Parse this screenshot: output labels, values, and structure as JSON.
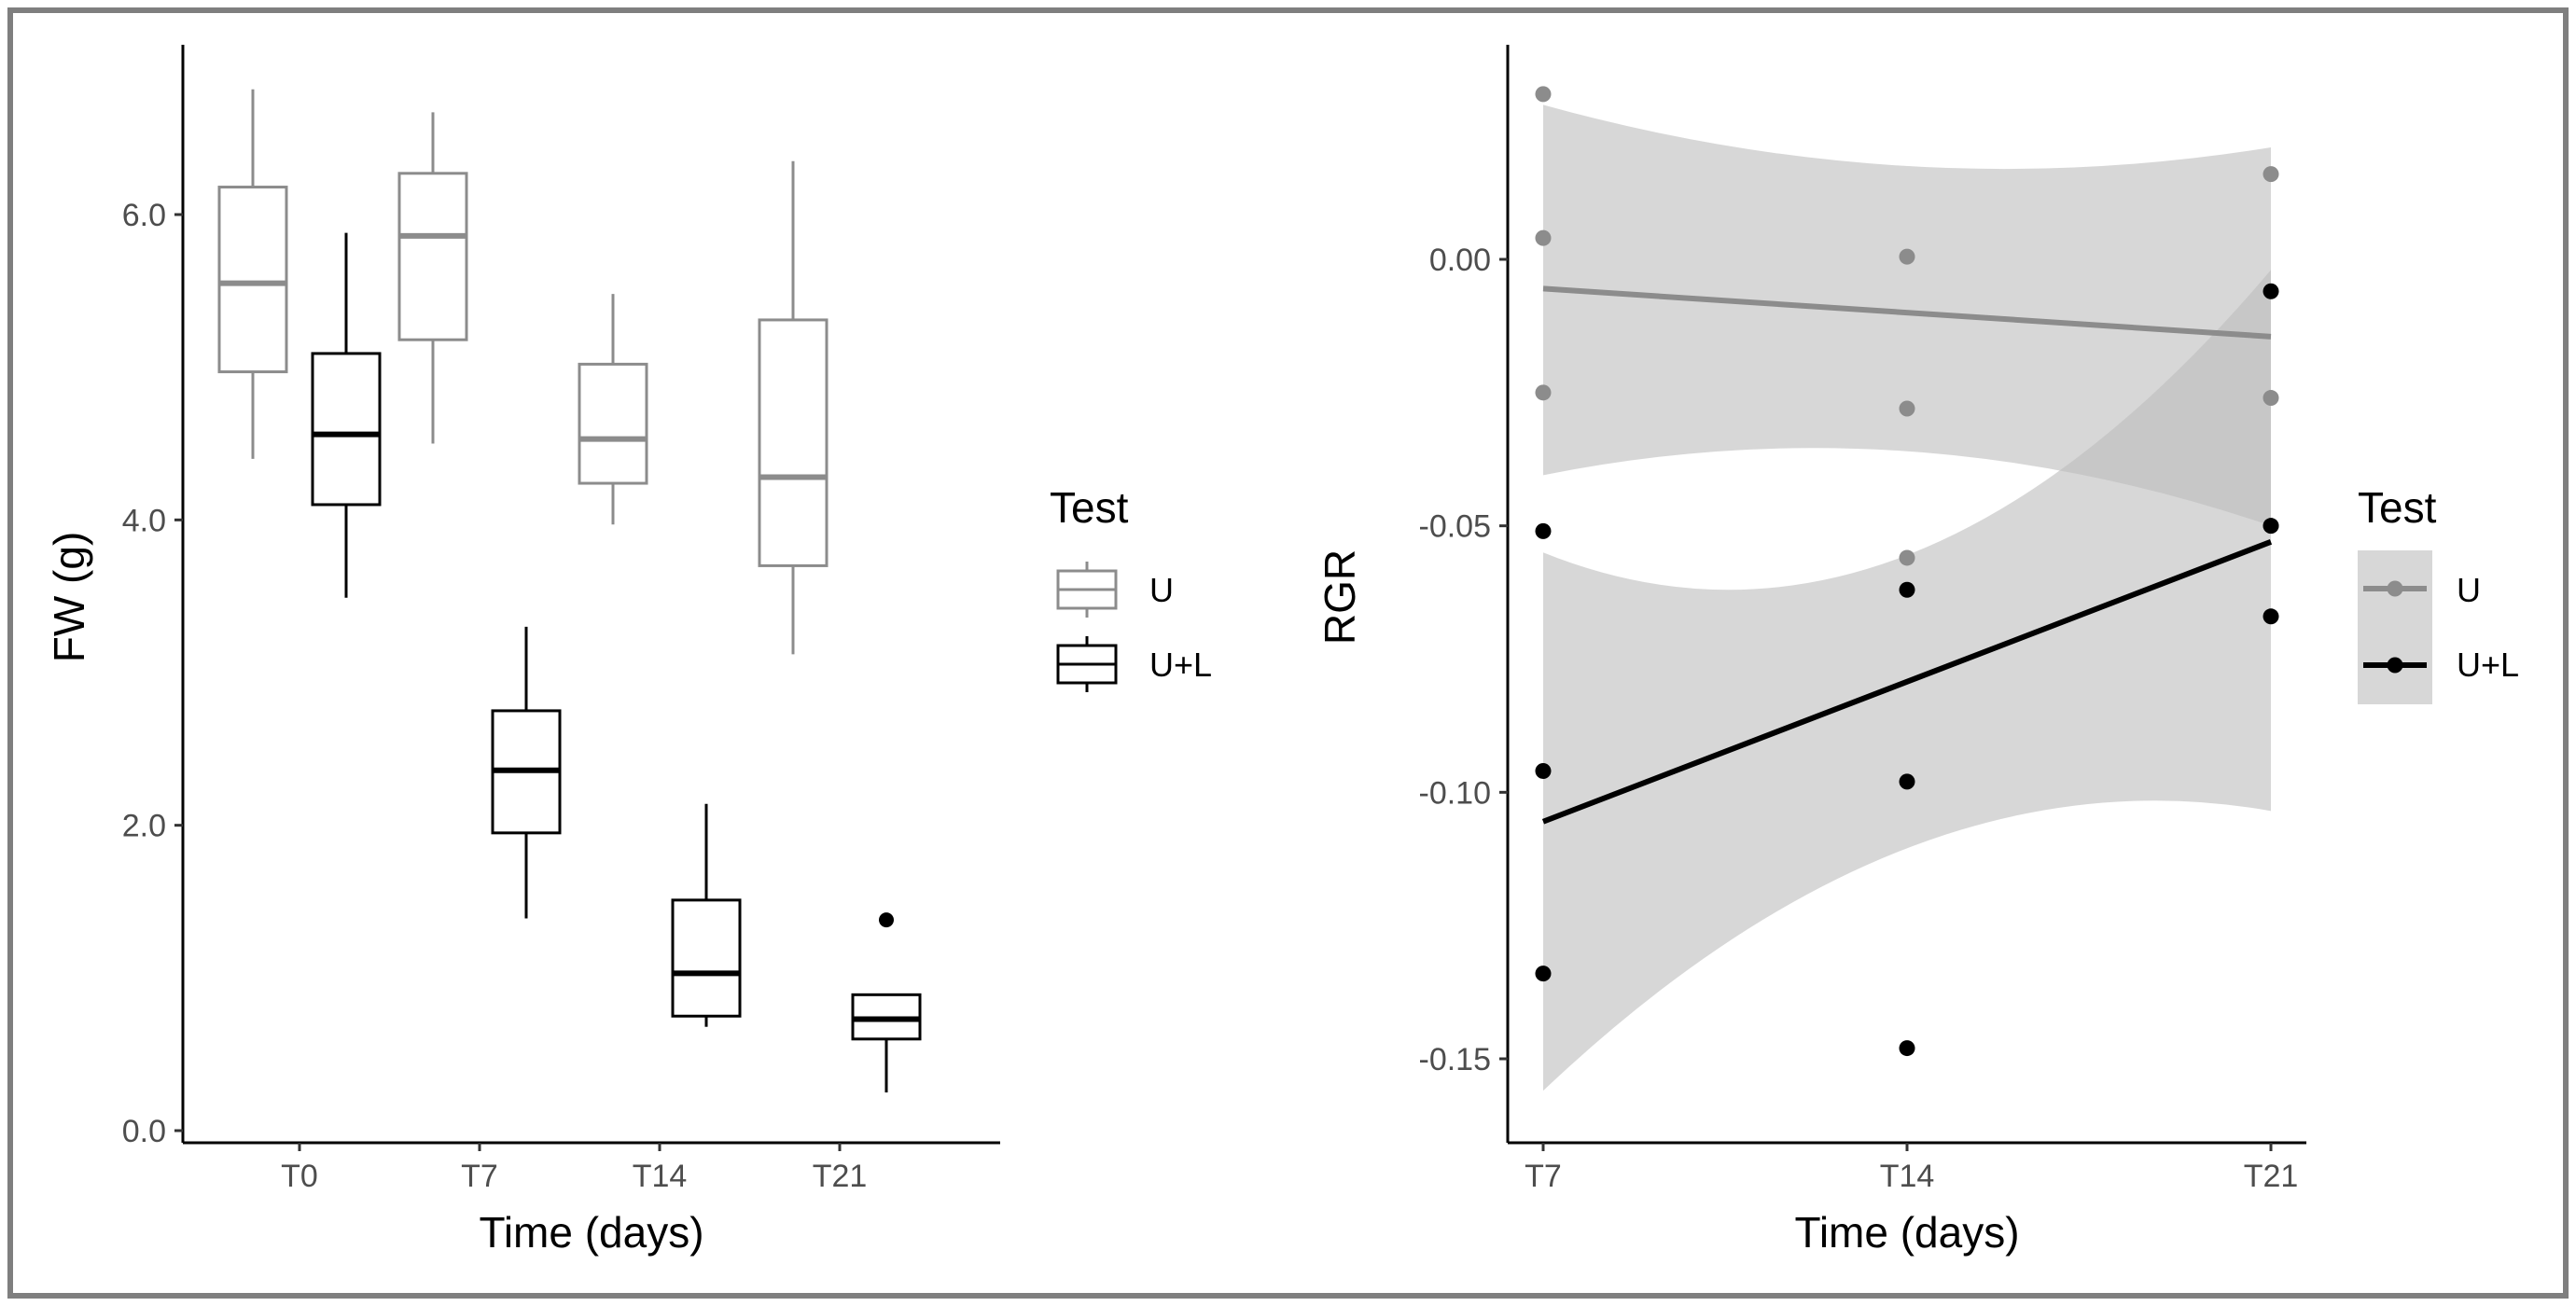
{
  "colors": {
    "U": "#8c8c8c",
    "UL": "#000000",
    "ribbon": "#bdbdbd",
    "frame": "#7f7f7f"
  },
  "chart_data": [
    {
      "type": "box",
      "xlabel": "Time (days)",
      "ylabel": "FW (g)",
      "categories": [
        "T0",
        "T7",
        "T14",
        "T21"
      ],
      "yticks": [
        "0.0",
        "2.0",
        "4.0",
        "6.0"
      ],
      "ylim": [
        0,
        7.1
      ],
      "legend": {
        "title": "Test",
        "entries": [
          "U",
          "U+L"
        ],
        "position": "right"
      },
      "series": [
        {
          "name": "U",
          "boxes": [
            {
              "min": 4.4,
              "q1": 4.97,
              "median": 5.55,
              "q3": 6.18,
              "max": 6.82
            },
            {
              "min": 4.5,
              "q1": 5.18,
              "median": 5.86,
              "q3": 6.27,
              "max": 6.67
            },
            {
              "min": 3.97,
              "q1": 4.24,
              "median": 4.53,
              "q3": 5.02,
              "max": 5.48
            },
            {
              "min": 3.12,
              "q1": 3.7,
              "median": 4.28,
              "q3": 5.31,
              "max": 6.35
            }
          ],
          "outliers": []
        },
        {
          "name": "U+L",
          "boxes": [
            {
              "min": 3.49,
              "q1": 4.1,
              "median": 4.56,
              "q3": 5.09,
              "max": 5.88
            },
            {
              "min": 1.39,
              "q1": 1.95,
              "median": 2.36,
              "q3": 2.75,
              "max": 3.3
            },
            {
              "min": 0.68,
              "q1": 0.75,
              "median": 1.03,
              "q3": 1.51,
              "max": 2.14
            },
            {
              "min": 0.25,
              "q1": 0.6,
              "median": 0.73,
              "q3": 0.89,
              "max": 0.89
            }
          ],
          "outliers": [
            {
              "category": "T21",
              "value": 1.38
            }
          ]
        }
      ]
    },
    {
      "type": "scatter",
      "xlabel": "Time (days)",
      "ylabel": "RGR",
      "categories": [
        "T7",
        "T14",
        "T21"
      ],
      "yticks": [
        "0.00",
        "-0.05",
        "-0.10",
        "-0.15"
      ],
      "ytick_values": [
        0.0,
        -0.05,
        -0.1,
        -0.15
      ],
      "ylim": [
        -0.165,
        0.04
      ],
      "legend": {
        "title": "Test",
        "entries": [
          "U",
          "U+L"
        ],
        "position": "right"
      },
      "series": [
        {
          "name": "U",
          "points": [
            {
              "x": "T7",
              "y": 0.031
            },
            {
              "x": "T7",
              "y": 0.004
            },
            {
              "x": "T7",
              "y": -0.025
            },
            {
              "x": "T14",
              "y": 0.0005
            },
            {
              "x": "T14",
              "y": -0.028
            },
            {
              "x": "T14",
              "y": -0.056
            },
            {
              "x": "T21",
              "y": 0.016
            },
            {
              "x": "T21",
              "y": -0.026
            },
            {
              "x": "T21",
              "y": -0.05
            }
          ],
          "fit": {
            "start": -0.0055,
            "end": -0.0145
          },
          "ci_upper": [
            0.029,
            0.0175,
            0.021
          ],
          "ci_lower": [
            -0.0405,
            -0.036,
            -0.05
          ]
        },
        {
          "name": "U+L",
          "points": [
            {
              "x": "T7",
              "y": -0.051
            },
            {
              "x": "T7",
              "y": -0.096
            },
            {
              "x": "T7",
              "y": -0.134
            },
            {
              "x": "T14",
              "y": -0.062
            },
            {
              "x": "T14",
              "y": -0.098
            },
            {
              "x": "T14",
              "y": -0.148
            },
            {
              "x": "T21",
              "y": -0.006
            },
            {
              "x": "T21",
              "y": -0.05
            },
            {
              "x": "T21",
              "y": -0.067
            }
          ],
          "fit": {
            "start": -0.1055,
            "end": -0.053
          },
          "ci_upper": [
            -0.055,
            -0.0555,
            -0.002
          ],
          "ci_lower": [
            -0.156,
            -0.1105,
            -0.1035
          ]
        }
      ]
    }
  ]
}
